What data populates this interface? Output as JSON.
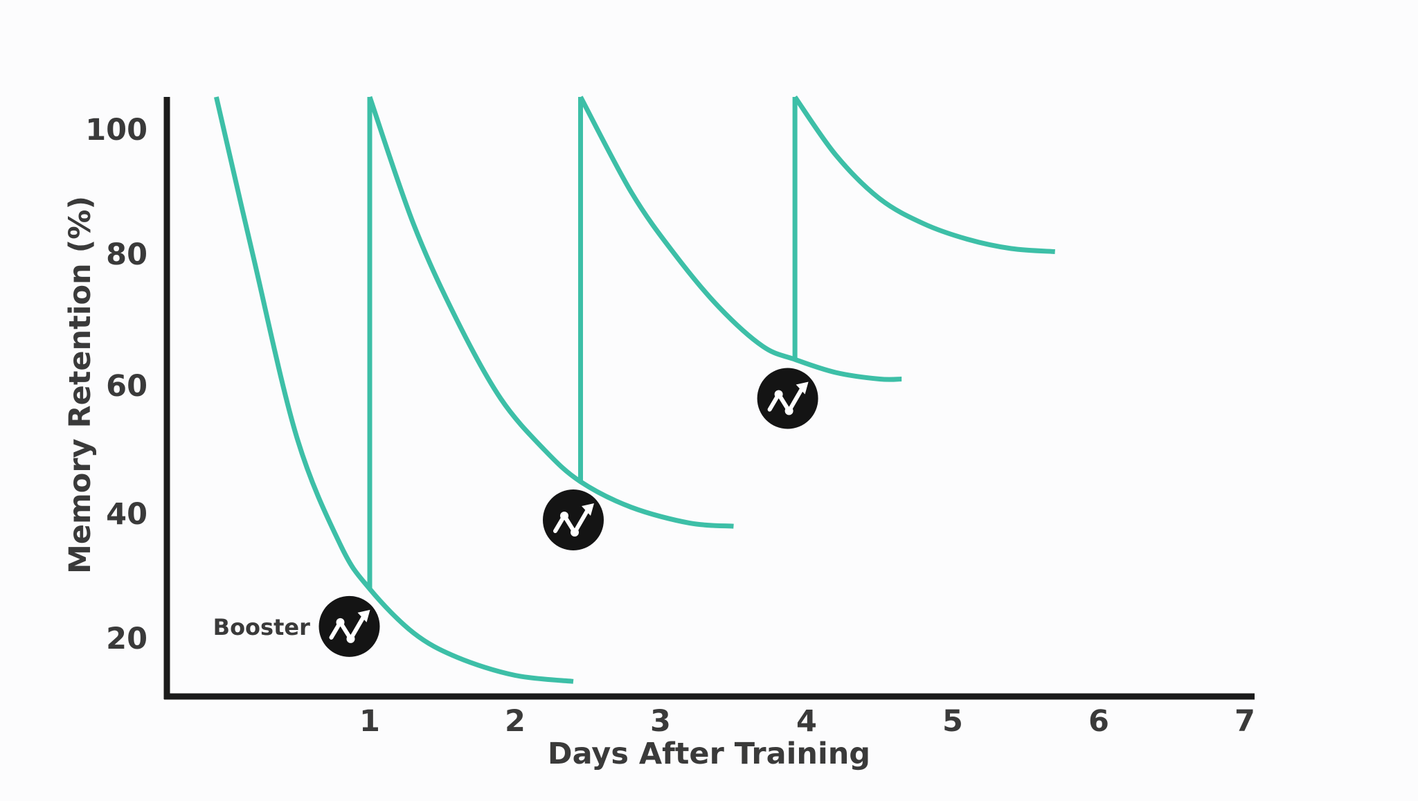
{
  "chart_data": {
    "type": "line",
    "title": "",
    "xlabel": "Days After Training",
    "ylabel": "Memory Retention (%)",
    "x_ticks": [
      1,
      2,
      3,
      4,
      5,
      6,
      7
    ],
    "y_ticks": [
      20,
      40,
      60,
      80,
      100
    ],
    "xlim": [
      -0.1,
      7.0
    ],
    "ylim": [
      12,
      105
    ],
    "grid": false,
    "legend": "none",
    "colors": {
      "curve": "#3dbfa7",
      "axis": "#1b1b1b",
      "text": "#3a3a3a",
      "marker": "#141414",
      "marker_icon": "#ffffff"
    },
    "series": [
      {
        "points": [
          [
            -0.05,
            105
          ],
          [
            0.2,
            80
          ],
          [
            0.5,
            52
          ],
          [
            0.8,
            35
          ],
          [
            1.0,
            28
          ],
          [
            1.3,
            21
          ],
          [
            1.6,
            17
          ],
          [
            2.0,
            14
          ],
          [
            2.4,
            13
          ]
        ],
        "jump_after": {
          "x": 1.0,
          "from": 28,
          "to": 105
        }
      },
      {
        "points": [
          [
            1.0,
            105
          ],
          [
            1.3,
            85
          ],
          [
            1.6,
            70
          ],
          [
            1.9,
            58
          ],
          [
            2.2,
            50
          ],
          [
            2.45,
            45
          ],
          [
            2.8,
            41
          ],
          [
            3.2,
            38.5
          ],
          [
            3.5,
            38
          ]
        ],
        "jump_after": {
          "x": 2.45,
          "from": 45,
          "to": 105
        }
      },
      {
        "points": [
          [
            2.45,
            105
          ],
          [
            2.8,
            90
          ],
          [
            3.1,
            80
          ],
          [
            3.4,
            72
          ],
          [
            3.7,
            66
          ],
          [
            3.92,
            64
          ],
          [
            4.2,
            62
          ],
          [
            4.5,
            61
          ],
          [
            4.65,
            61
          ]
        ],
        "jump_after": {
          "x": 3.92,
          "from": 64,
          "to": 105
        }
      },
      {
        "points": [
          [
            3.92,
            105
          ],
          [
            4.2,
            96
          ],
          [
            4.5,
            89
          ],
          [
            4.8,
            85
          ],
          [
            5.1,
            82.5
          ],
          [
            5.4,
            81
          ],
          [
            5.7,
            80.5
          ]
        ]
      }
    ],
    "annotations": [
      {
        "label": "Booster",
        "x": -0.12,
        "y": 22
      },
      {
        "x": 0.86,
        "y": 22
      },
      {
        "x": 2.4,
        "y": 39
      },
      {
        "x": 3.87,
        "y": 58
      }
    ]
  }
}
